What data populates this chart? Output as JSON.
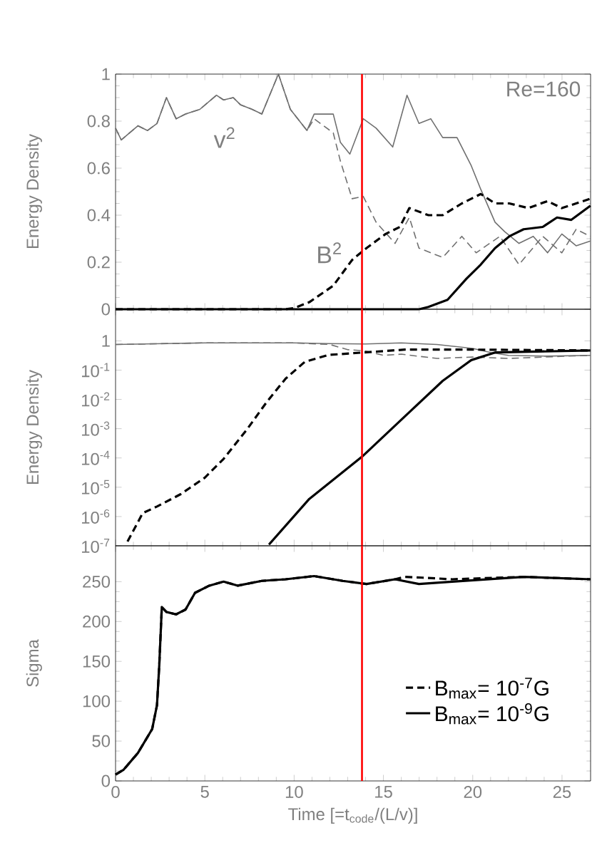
{
  "chart_data": [
    {
      "type": "line",
      "ylabel": "Energy Density",
      "xlim": [
        0,
        26.6
      ],
      "ylim": [
        0,
        1
      ],
      "xticks": [
        0,
        5,
        10,
        15,
        20,
        25
      ],
      "yticks": [
        0,
        0.2,
        0.4,
        0.6,
        0.8,
        1
      ],
      "tick_labels": "y",
      "grid": false,
      "legend": false,
      "marker": "none",
      "annotations": [
        "Re=160",
        "v$^{2}$",
        "B$^{2}$"
      ],
      "ref_lines": [
        {
          "axis": "x",
          "value": 13.8,
          "color": "#ff0000"
        }
      ],
      "series": [
        {
          "color": "#707070",
          "line_style": "solid",
          "x": [
            0,
            0.32,
            1.25,
            1.79,
            2.32,
            2.85,
            3.39,
            3.92,
            4.72,
            5.65,
            6.05,
            6.59,
            6.99,
            7.65,
            8.19,
            9.12,
            9.79,
            10.72,
            11.12,
            12.19,
            12.59,
            13.12,
            13.87,
            14.59,
            15.52,
            16.32,
            16.99,
            17.65,
            18.32,
            19.12,
            19.92,
            20.45,
            21.25,
            21.79,
            22.59,
            23.39,
            24.19,
            24.99,
            25.79,
            26.59
          ],
          "values": [
            0.77,
            0.72,
            0.78,
            0.76,
            0.79,
            0.9,
            0.81,
            0.83,
            0.85,
            0.91,
            0.89,
            0.9,
            0.87,
            0.85,
            0.83,
            1.0,
            0.85,
            0.76,
            0.83,
            0.83,
            0.71,
            0.66,
            0.81,
            0.77,
            0.69,
            0.91,
            0.79,
            0.81,
            0.73,
            0.73,
            0.61,
            0.51,
            0.37,
            0.33,
            0.28,
            0.31,
            0.24,
            0.32,
            0.27,
            0.29
          ]
        },
        {
          "color": "#707070",
          "line_style": "dashed",
          "x": [
            0,
            0.32,
            1.25,
            1.79,
            2.32,
            2.85,
            3.39,
            3.92,
            4.72,
            5.65,
            6.05,
            6.59,
            6.99,
            7.65,
            8.19,
            9.12,
            9.79,
            10.72,
            11.12,
            12.19,
            12.59,
            13.25,
            13.87,
            14.59,
            15.65,
            16.45,
            16.99,
            18.32,
            19.39,
            20.19,
            21.52,
            22.59,
            23.92,
            24.99,
            25.79,
            26.59
          ],
          "values": [
            0.77,
            0.72,
            0.78,
            0.76,
            0.79,
            0.9,
            0.81,
            0.83,
            0.85,
            0.91,
            0.89,
            0.9,
            0.87,
            0.85,
            0.83,
            1.0,
            0.85,
            0.76,
            0.81,
            0.75,
            0.63,
            0.47,
            0.48,
            0.37,
            0.28,
            0.39,
            0.26,
            0.22,
            0.31,
            0.24,
            0.31,
            0.19,
            0.31,
            0.24,
            0.34,
            0.31
          ]
        },
        {
          "color": "#000000",
          "line_style": "dashed",
          "x": [
            0,
            9.5,
            10.0,
            10.85,
            12.19,
            13.25,
            14.05,
            15.12,
            15.92,
            16.45,
            17.52,
            18.32,
            19.39,
            20.45,
            21.25,
            22.05,
            23.12,
            24.19,
            24.99,
            26.59
          ],
          "values": [
            0,
            0,
            0.005,
            0.03,
            0.1,
            0.21,
            0.26,
            0.32,
            0.35,
            0.43,
            0.4,
            0.4,
            0.45,
            0.49,
            0.45,
            0.45,
            0.43,
            0.46,
            0.43,
            0.47
          ]
        },
        {
          "color": "#000000",
          "line_style": "solid",
          "x": [
            0,
            17.0,
            17.52,
            18.59,
            19.65,
            20.45,
            21.25,
            22.05,
            22.85,
            23.92,
            24.72,
            25.52,
            26.59
          ],
          "values": [
            0,
            0,
            0.01,
            0.04,
            0.13,
            0.19,
            0.26,
            0.31,
            0.34,
            0.35,
            0.39,
            0.38,
            0.44
          ]
        }
      ]
    },
    {
      "type": "line",
      "ylabel": "Energy Density",
      "log": "y",
      "xlim": [
        0,
        26.6
      ],
      "ylim": [
        1e-07,
        12
      ],
      "xticks": [
        0,
        5,
        10,
        15,
        20,
        25
      ],
      "yticks": [
        {
          "value": 1,
          "label": "1"
        },
        {
          "value": 0.1,
          "label": "10$^{-1}$"
        },
        {
          "value": 0.01,
          "label": "10$^{-2}$"
        },
        {
          "value": 0.001,
          "label": "10$^{-3}$"
        },
        {
          "value": 0.0001,
          "label": "10$^{-4}$"
        },
        {
          "value": 1e-05,
          "label": "10$^{-5}$"
        },
        {
          "value": 1e-06,
          "label": "10$^{-6}$"
        },
        {
          "value": 1e-07,
          "label": "10$^{-7}$"
        }
      ],
      "tick_labels": "y",
      "grid": false,
      "legend": false,
      "marker": "none",
      "ref_lines": [
        {
          "axis": "x",
          "value": 13.8,
          "color": "#ff0000"
        }
      ],
      "series": [
        {
          "color": "#707070",
          "line_style": "solid",
          "x": [
            0,
            5,
            10,
            12,
            14,
            16,
            18,
            20,
            21,
            22,
            24,
            26.6
          ],
          "values": [
            0.75,
            0.85,
            0.85,
            0.8,
            0.78,
            0.85,
            0.75,
            0.55,
            0.4,
            0.32,
            0.3,
            0.32
          ]
        },
        {
          "color": "#707070",
          "line_style": "dashed",
          "x": [
            0,
            5,
            10,
            12,
            13,
            14,
            15,
            16,
            18,
            20,
            22,
            24,
            26.6
          ],
          "values": [
            0.75,
            0.85,
            0.85,
            0.75,
            0.5,
            0.45,
            0.32,
            0.35,
            0.25,
            0.28,
            0.25,
            0.28,
            0.32
          ]
        },
        {
          "color": "#000000",
          "line_style": "dashed",
          "x": [
            0.67,
            1.52,
            2.32,
            3.65,
            4.99,
            6.05,
            7.39,
            8.45,
            9.52,
            10.59,
            11.92,
            13.87,
            16.19,
            20.19,
            26.59
          ],
          "values": [
            1.4e-07,
            1.3e-06,
            2.2e-06,
            5.8e-06,
            2.1e-05,
            9.3e-05,
            0.001,
            0.0079,
            0.051,
            0.19,
            0.33,
            0.4,
            0.5,
            0.5,
            0.47
          ]
        },
        {
          "color": "#000000",
          "line_style": "solid",
          "x": [
            8.59,
            10.85,
            13.87,
            16.19,
            18.32,
            19.92,
            21.25,
            26.59
          ],
          "values": [
            1.1e-07,
            4e-06,
            0.00012,
            0.0026,
            0.043,
            0.22,
            0.4,
            0.47
          ]
        }
      ]
    },
    {
      "type": "line",
      "ylabel": "Sigma",
      "xlabel": "Time [=t$_{code}$/(L/v)]",
      "xlim": [
        0,
        26.6
      ],
      "ylim": [
        0,
        295
      ],
      "xticks": [
        0,
        5,
        10,
        15,
        20,
        25
      ],
      "yticks": [
        0,
        50,
        100,
        150,
        200,
        250
      ],
      "grid": false,
      "legend": "bottom right",
      "marker": "none",
      "ref_lines": [
        {
          "axis": "x",
          "value": 13.8,
          "color": "#ff0000"
        }
      ],
      "series": [
        {
          "name": "B$_{max}$= 10$^{-7}$G",
          "color": "#000000",
          "line_style": "dashed",
          "x": [
            0,
            0.45,
            1.25,
            2.05,
            2.32,
            2.45,
            2.59,
            2.85,
            3.39,
            3.92,
            4.45,
            5.25,
            6.05,
            6.85,
            8.19,
            9.52,
            11.12,
            12.72,
            14.05,
            15.65,
            16.19,
            17.2,
            18.85,
            22.85,
            26.59
          ],
          "values": [
            8,
            14,
            35,
            65,
            95,
            146,
            218,
            212,
            209,
            215,
            236,
            245,
            250,
            245,
            251,
            253,
            257,
            251,
            247,
            253,
            256,
            255,
            253,
            256,
            253
          ]
        },
        {
          "name": "B$_{max}$= 10$^{-9}$G",
          "color": "#000000",
          "line_style": "solid",
          "x": [
            0,
            0.45,
            1.25,
            2.05,
            2.32,
            2.45,
            2.59,
            2.85,
            3.39,
            3.92,
            4.45,
            5.25,
            6.05,
            6.85,
            8.19,
            9.52,
            11.12,
            12.72,
            14.05,
            15.65,
            16.99,
            18.85,
            22.85,
            26.59
          ],
          "values": [
            8,
            14,
            35,
            65,
            95,
            146,
            218,
            212,
            209,
            215,
            236,
            245,
            250,
            245,
            251,
            253,
            257,
            251,
            247,
            253,
            247,
            250,
            256,
            253
          ]
        }
      ]
    }
  ]
}
